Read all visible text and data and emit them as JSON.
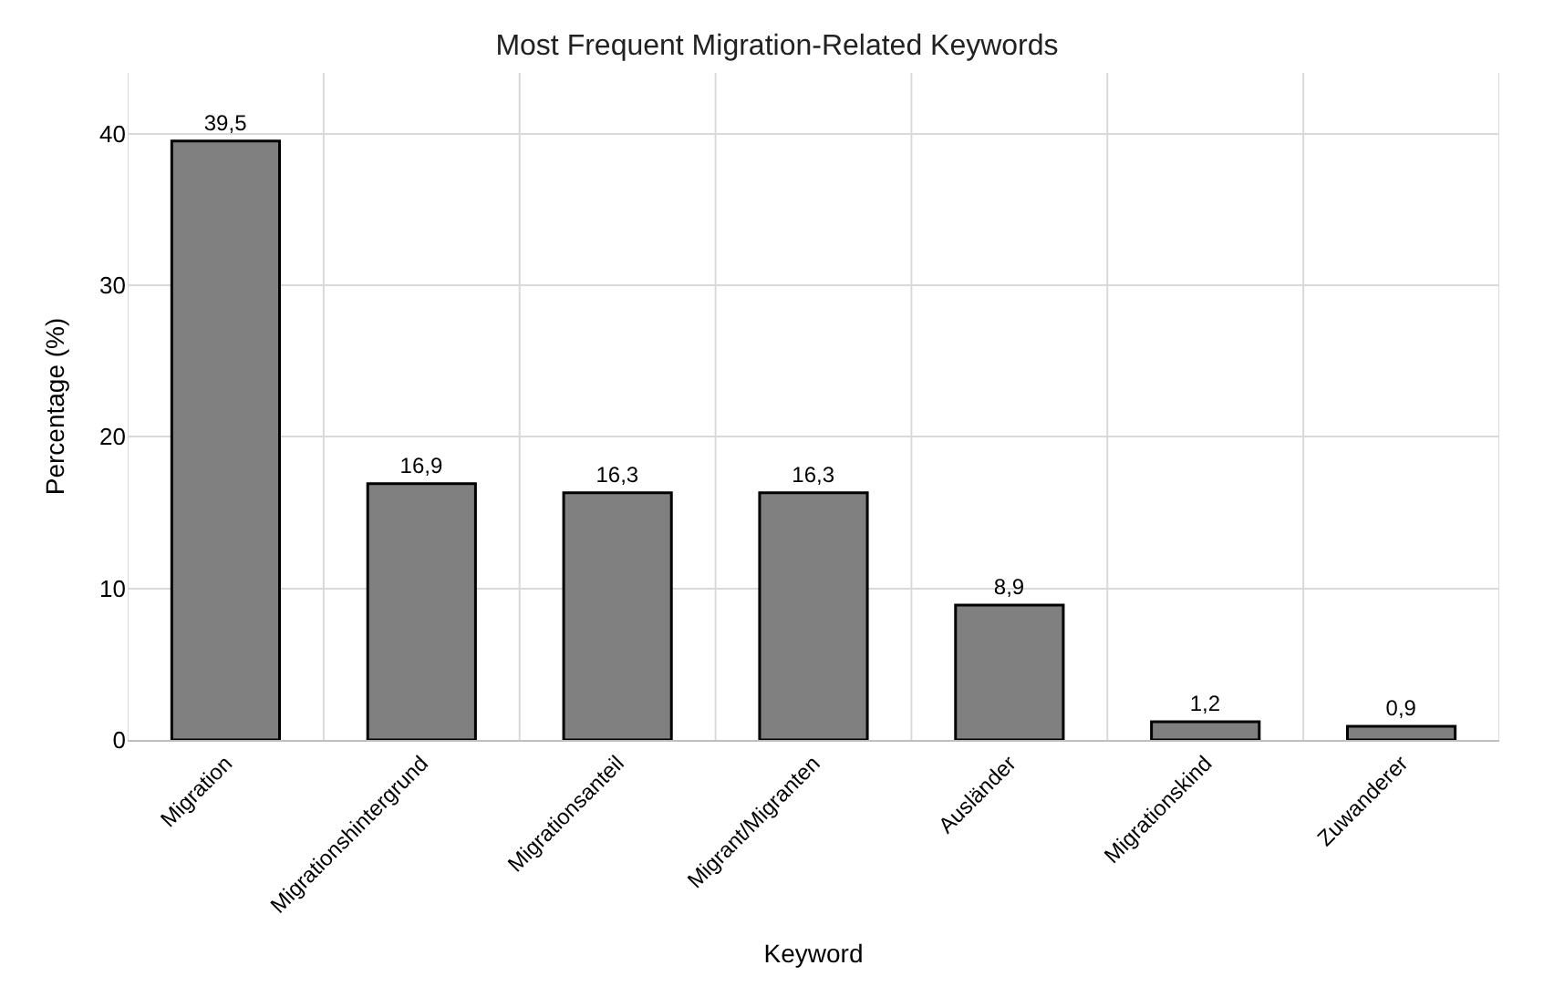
{
  "chart_data": {
    "type": "bar",
    "title": "Most Frequent Migration-Related Keywords",
    "xlabel": "Keyword",
    "ylabel": "Percentage (%)",
    "categories": [
      "Migration",
      "Migrationshintergrund",
      "Migrationsanteil",
      "Migrant/Migranten",
      "Ausländer",
      "Migrationskind",
      "Zuwanderer"
    ],
    "values": [
      39.5,
      16.9,
      16.3,
      16.3,
      8.9,
      1.2,
      0.9
    ],
    "value_labels": [
      "39,5",
      "16,9",
      "16,3",
      "16,3",
      "8,9",
      "1,2",
      "0,9"
    ],
    "color": "#808080",
    "ylim": [
      0,
      44
    ],
    "yticks": [
      0,
      10,
      20,
      30,
      40
    ],
    "grid": true,
    "legend": false
  }
}
